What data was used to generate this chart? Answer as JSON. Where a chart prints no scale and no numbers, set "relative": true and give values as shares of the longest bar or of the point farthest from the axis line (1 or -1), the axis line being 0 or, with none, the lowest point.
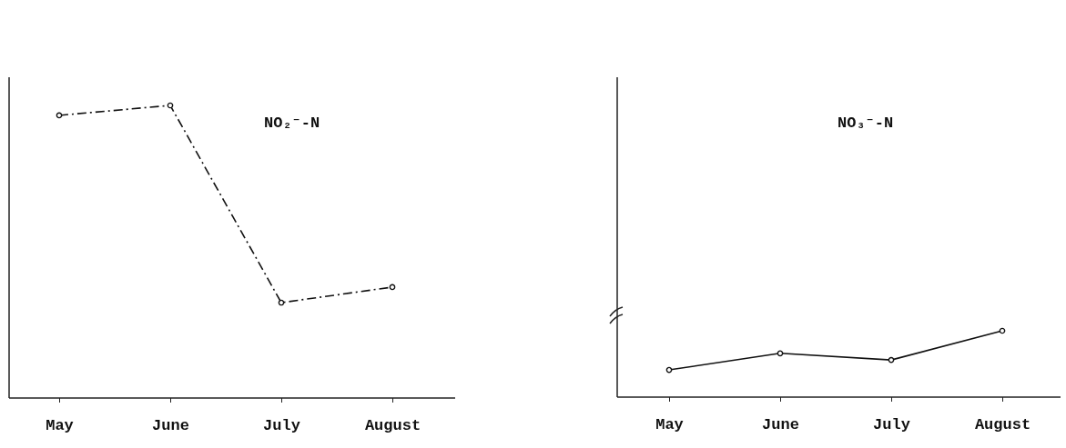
{
  "chart_data": [
    {
      "type": "line",
      "relative": true,
      "categories": [
        "May",
        "June",
        "July",
        "August"
      ],
      "marker": "circle",
      "line_style": "dashed",
      "series": [
        {
          "name": "NO₂⁻-N",
          "color": "#111111",
          "values": [
            0.966,
            1,
            0.326,
            0.379
          ]
        }
      ]
    },
    {
      "type": "line",
      "relative": true,
      "categories": [
        "May",
        "June",
        "July",
        "August"
      ],
      "marker": "circle",
      "line_style": "solid",
      "series": [
        {
          "name": "NO₃⁻-N",
          "color": "#111111",
          "values": [
            0.41,
            0.66,
            0.56,
            1
          ]
        }
      ]
    }
  ]
}
